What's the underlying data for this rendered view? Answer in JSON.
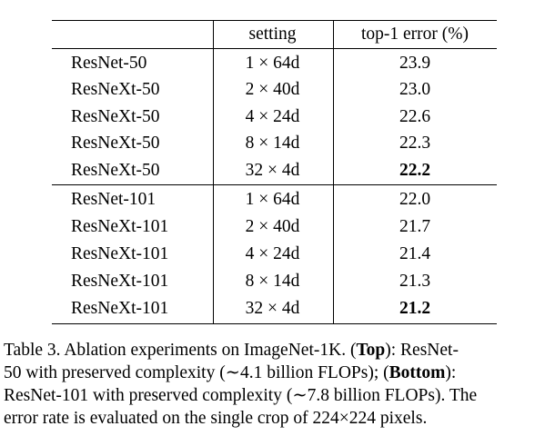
{
  "table": {
    "headers": {
      "model": "",
      "setting": "setting",
      "error": "top-1 error (%)"
    },
    "groups": [
      {
        "rows": [
          {
            "model": "ResNet-50",
            "setting": "1 × 64d",
            "error": "23.9",
            "bold": false
          },
          {
            "model": "ResNeXt-50",
            "setting": "2 × 40d",
            "error": "23.0",
            "bold": false
          },
          {
            "model": "ResNeXt-50",
            "setting": "4 × 24d",
            "error": "22.6",
            "bold": false
          },
          {
            "model": "ResNeXt-50",
            "setting": "8 × 14d",
            "error": "22.3",
            "bold": false
          },
          {
            "model": "ResNeXt-50",
            "setting": "32 × 4d",
            "error": "22.2",
            "bold": true
          }
        ]
      },
      {
        "rows": [
          {
            "model": "ResNet-101",
            "setting": "1 × 64d",
            "error": "22.0",
            "bold": false
          },
          {
            "model": "ResNeXt-101",
            "setting": "2 × 40d",
            "error": "21.7",
            "bold": false
          },
          {
            "model": "ResNeXt-101",
            "setting": "4 × 24d",
            "error": "21.4",
            "bold": false
          },
          {
            "model": "ResNeXt-101",
            "setting": "8 × 14d",
            "error": "21.3",
            "bold": false
          },
          {
            "model": "ResNeXt-101",
            "setting": "32 × 4d",
            "error": "21.2",
            "bold": true
          }
        ]
      }
    ]
  },
  "caption": {
    "line1_pre": "Table 3. Ablation experiments on ImageNet-1K. (",
    "line1_bold": "Top",
    "line1_post": "): ResNet-",
    "line2_pre": "50 with preserved complexity (∼4.1 billion FLOPs); (",
    "line2_bold": "Bottom",
    "line2_post": "):",
    "line3": "ResNet-101 with preserved complexity (∼7.8 billion FLOPs). The",
    "line4": "error rate is evaluated on the single crop of 224×224 pixels."
  }
}
